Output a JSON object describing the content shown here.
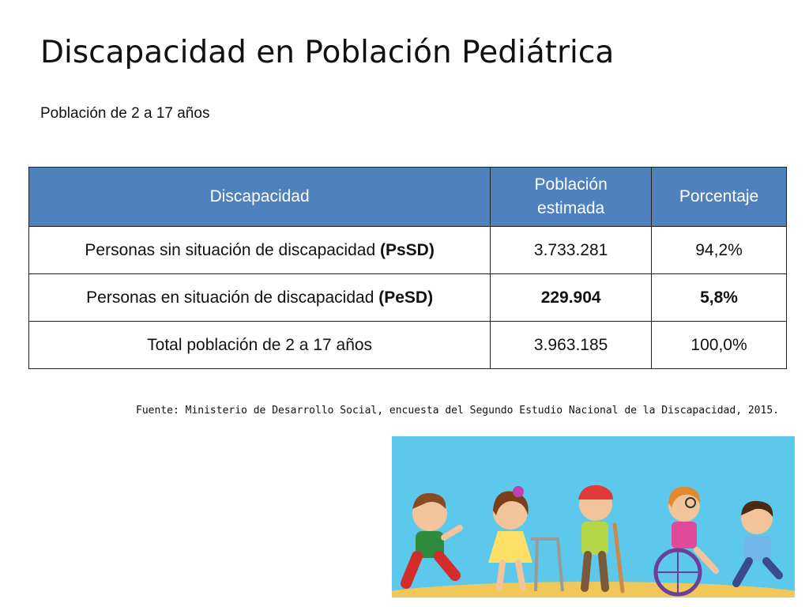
{
  "title": "Discapacidad en Población Pediátrica",
  "subtitle": "Población de 2 a 17 años",
  "table": {
    "headers": [
      "Discapacidad",
      "Población estimada",
      "Porcentaje"
    ],
    "header_lines": {
      "col2_line1": "Población",
      "col2_line2": "estimada"
    },
    "rows": [
      {
        "label_text": "Personas sin situación de discapacidad ",
        "label_abbr": "(PsSD)",
        "population": "3.733.281",
        "percent": "94,2%"
      },
      {
        "label_text": "Personas en situación de discapacidad ",
        "label_abbr": "(PeSD)",
        "population": "229.904",
        "percent": "5,8%"
      },
      {
        "label_text": "Total población de 2 a 17 años",
        "label_abbr": "",
        "population": "3.963.185",
        "percent": "100,0%"
      }
    ]
  },
  "source": "Fuente: Ministerio de Desarrollo Social, encuesta del Segundo Estudio Nacional de la Discapacidad, 2015.",
  "illustration": {
    "sky_color": "#5bc8ec",
    "ground_color": "#f0c85a"
  }
}
